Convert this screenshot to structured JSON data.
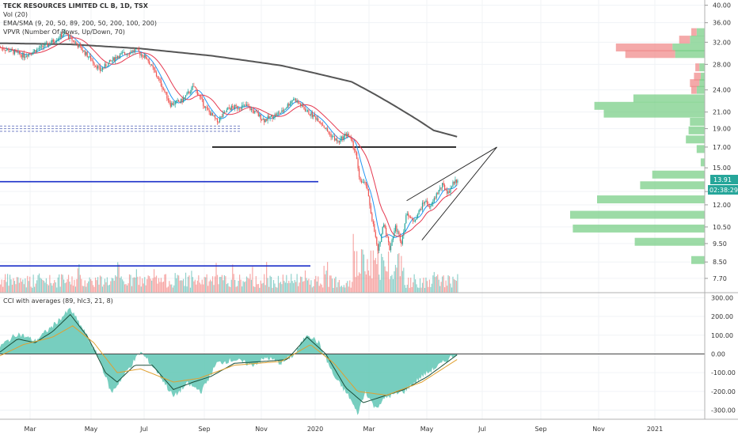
{
  "legend": {
    "title": "TECK RESOURCES LIMITED CL B, 1D, TSX",
    "vol": "Vol (20)",
    "ema": "EMA/SMA (9, 20, 50, 89, 200, 50, 200, 100, 200)",
    "vpvr": "VPVR (Number Of Rows, Up/Down, 70)",
    "cci": "CCI with averages (89, hlc3, 21, 8)"
  },
  "price_badges": {
    "last": "13.91",
    "countdown": "02:38:29"
  },
  "colors": {
    "up": "#26a69a",
    "down": "#ef5350",
    "ema_short": "#2196f3",
    "ema_mid": "#e53950",
    "ma_long": "#555555",
    "level": "#1a2fc9",
    "vpvr_up": "#7bcf88",
    "vpvr_down": "#f08c8c",
    "cci_fill": "#5fc6b4"
  },
  "chart_data": [
    {
      "type": "candlestick",
      "title": "TECK RESOURCES LIMITED CL B, 1D, TSX",
      "x_ticks": [
        "Mar",
        "May",
        "Jul",
        "Sep",
        "Nov",
        "2020",
        "Mar",
        "May",
        "Jul",
        "Sep",
        "Nov",
        "2021"
      ],
      "y_ticks": [
        "7.70",
        "8.50",
        "9.50",
        "10.50",
        "12.00",
        "13.00",
        "15.00",
        "17.00",
        "19.00",
        "21.00",
        "24.00",
        "28.00",
        "32.00",
        "36.00",
        "40.00"
      ],
      "y_scale": "log",
      "ylim": [
        7.2,
        40.5
      ],
      "last_price": 13.91,
      "anchors": [
        {
          "d": 0,
          "p": 31.0
        },
        {
          "d": 20,
          "p": 29.5
        },
        {
          "d": 40,
          "p": 31.5
        },
        {
          "d": 55,
          "p": 33.8
        },
        {
          "d": 70,
          "p": 30.5
        },
        {
          "d": 85,
          "p": 27.0
        },
        {
          "d": 100,
          "p": 29.5
        },
        {
          "d": 115,
          "p": 30.5
        },
        {
          "d": 125,
          "p": 29.0
        },
        {
          "d": 135,
          "p": 25.5
        },
        {
          "d": 145,
          "p": 22.0
        },
        {
          "d": 155,
          "p": 22.5
        },
        {
          "d": 165,
          "p": 24.5
        },
        {
          "d": 175,
          "p": 21.5
        },
        {
          "d": 185,
          "p": 19.8
        },
        {
          "d": 195,
          "p": 21.5
        },
        {
          "d": 210,
          "p": 21.8
        },
        {
          "d": 225,
          "p": 20.0
        },
        {
          "d": 240,
          "p": 21.0
        },
        {
          "d": 250,
          "p": 22.8
        },
        {
          "d": 262,
          "p": 21.0
        },
        {
          "d": 272,
          "p": 20.0
        },
        {
          "d": 280,
          "p": 18.5
        },
        {
          "d": 288,
          "p": 17.5
        },
        {
          "d": 296,
          "p": 18.5
        },
        {
          "d": 303,
          "p": 16.5
        },
        {
          "d": 306,
          "p": 14.0
        },
        {
          "d": 312,
          "p": 13.5
        },
        {
          "d": 317,
          "p": 11.0
        },
        {
          "d": 322,
          "p": 9.0
        },
        {
          "d": 327,
          "p": 10.8
        },
        {
          "d": 332,
          "p": 9.2
        },
        {
          "d": 337,
          "p": 10.5
        },
        {
          "d": 342,
          "p": 9.6
        },
        {
          "d": 347,
          "p": 11.5
        },
        {
          "d": 352,
          "p": 10.8
        },
        {
          "d": 357,
          "p": 11.5
        },
        {
          "d": 362,
          "p": 12.3
        },
        {
          "d": 367,
          "p": 11.8
        },
        {
          "d": 372,
          "p": 12.8
        },
        {
          "d": 377,
          "p": 13.5
        },
        {
          "d": 382,
          "p": 12.9
        },
        {
          "d": 387,
          "p": 13.8
        },
        {
          "d": 390,
          "p": 13.91
        }
      ],
      "moving_average_200": [
        {
          "d": 0,
          "p": 31.8
        },
        {
          "d": 60,
          "p": 31.6
        },
        {
          "d": 120,
          "p": 30.8
        },
        {
          "d": 180,
          "p": 29.5
        },
        {
          "d": 240,
          "p": 27.8
        },
        {
          "d": 300,
          "p": 25.2
        },
        {
          "d": 340,
          "p": 21.5
        },
        {
          "d": 370,
          "p": 18.8
        },
        {
          "d": 390,
          "p": 18.1
        }
      ],
      "horizontal_levels": [
        {
          "price": 13.8,
          "color": "#1a2fc9",
          "x0": 0,
          "x1": 402
        },
        {
          "price": 8.3,
          "color": "#1a2fc9",
          "x0": 0,
          "x1": 392
        },
        {
          "price": 17.0,
          "color": "#000000",
          "x0": 268,
          "x1": 576
        },
        {
          "price": 19.3,
          "color": "#7a86c8",
          "x0": 0,
          "x1": 305
        },
        {
          "price": 19.0,
          "color": "#7a86c8",
          "x0": 0,
          "x1": 305
        },
        {
          "price": 18.7,
          "color": "#7a86c8",
          "x0": 0,
          "x1": 305
        }
      ],
      "wedge": {
        "apex": {
          "d": 424,
          "p": 17.0
        },
        "upper_start": {
          "d": 347,
          "p": 12.3
        },
        "lower_start": {
          "d": 360,
          "p": 9.7
        }
      },
      "volume_profile": [
        {
          "price": 34.0,
          "up": 0.06,
          "down": 0.04
        },
        {
          "price": 32.5,
          "up": 0.11,
          "down": 0.08
        },
        {
          "price": 31.0,
          "up": 0.24,
          "down": 0.42
        },
        {
          "price": 29.8,
          "up": 0.22,
          "down": 0.37
        },
        {
          "price": 27.5,
          "up": 0.04,
          "down": 0.03
        },
        {
          "price": 26.0,
          "up": 0.03,
          "down": 0.05
        },
        {
          "price": 25.0,
          "up": 0.04,
          "down": 0.07
        },
        {
          "price": 24.0,
          "up": 0.06,
          "down": 0.04
        },
        {
          "price": 22.8,
          "up": 0.53,
          "down": 0.0
        },
        {
          "price": 21.8,
          "up": 0.82,
          "down": 0.0
        },
        {
          "price": 20.8,
          "up": 0.75,
          "down": 0.0
        },
        {
          "price": 19.8,
          "up": 0.11,
          "down": 0.0
        },
        {
          "price": 18.8,
          "up": 0.12,
          "down": 0.0
        },
        {
          "price": 17.8,
          "up": 0.14,
          "down": 0.0
        },
        {
          "price": 16.8,
          "up": 0.06,
          "down": 0.0
        },
        {
          "price": 15.5,
          "up": 0.03,
          "down": 0.0
        },
        {
          "price": 14.4,
          "up": 0.39,
          "down": 0.0
        },
        {
          "price": 13.5,
          "up": 0.48,
          "down": 0.0
        },
        {
          "price": 12.4,
          "up": 0.8,
          "down": 0.0
        },
        {
          "price": 11.3,
          "up": 1.0,
          "down": 0.0
        },
        {
          "price": 10.4,
          "up": 0.98,
          "down": 0.0
        },
        {
          "price": 9.6,
          "up": 0.52,
          "down": 0.0
        },
        {
          "price": 8.6,
          "up": 0.1,
          "down": 0.0
        }
      ]
    },
    {
      "type": "area",
      "title": "CCI with averages (89, hlc3, 21, 8)",
      "y_ticks": [
        "300.00",
        "200.00",
        "100.00",
        "0.00",
        "-100.00",
        "-200.00",
        "-300.00"
      ],
      "ylim": [
        -340,
        310
      ],
      "cci": [
        {
          "d": 0,
          "v": 40
        },
        {
          "d": 15,
          "v": 110
        },
        {
          "d": 30,
          "v": 70
        },
        {
          "d": 45,
          "v": 150
        },
        {
          "d": 60,
          "v": 240
        },
        {
          "d": 72,
          "v": 120
        },
        {
          "d": 85,
          "v": -30
        },
        {
          "d": 95,
          "v": -210
        },
        {
          "d": 105,
          "v": -120
        },
        {
          "d": 120,
          "v": 10
        },
        {
          "d": 135,
          "v": -100
        },
        {
          "d": 148,
          "v": -230
        },
        {
          "d": 160,
          "v": -160
        },
        {
          "d": 172,
          "v": -200
        },
        {
          "d": 185,
          "v": -50
        },
        {
          "d": 200,
          "v": -30
        },
        {
          "d": 215,
          "v": -60
        },
        {
          "d": 228,
          "v": -20
        },
        {
          "d": 240,
          "v": -50
        },
        {
          "d": 252,
          "v": 0
        },
        {
          "d": 262,
          "v": 110
        },
        {
          "d": 272,
          "v": 60
        },
        {
          "d": 285,
          "v": -120
        },
        {
          "d": 298,
          "v": -230
        },
        {
          "d": 305,
          "v": -320
        },
        {
          "d": 312,
          "v": -200
        },
        {
          "d": 320,
          "v": -290
        },
        {
          "d": 330,
          "v": -230
        },
        {
          "d": 345,
          "v": -200
        },
        {
          "d": 360,
          "v": -120
        },
        {
          "d": 375,
          "v": -60
        },
        {
          "d": 390,
          "v": 5
        }
      ],
      "avg_fast": [
        {
          "d": 0,
          "v": 10
        },
        {
          "d": 15,
          "v": 80
        },
        {
          "d": 30,
          "v": 60
        },
        {
          "d": 45,
          "v": 120
        },
        {
          "d": 60,
          "v": 210
        },
        {
          "d": 75,
          "v": 90
        },
        {
          "d": 90,
          "v": -100
        },
        {
          "d": 100,
          "v": -150
        },
        {
          "d": 115,
          "v": -60
        },
        {
          "d": 130,
          "v": -60
        },
        {
          "d": 148,
          "v": -190
        },
        {
          "d": 165,
          "v": -150
        },
        {
          "d": 180,
          "v": -120
        },
        {
          "d": 200,
          "v": -50
        },
        {
          "d": 225,
          "v": -40
        },
        {
          "d": 245,
          "v": -30
        },
        {
          "d": 262,
          "v": 90
        },
        {
          "d": 278,
          "v": 0
        },
        {
          "d": 295,
          "v": -180
        },
        {
          "d": 310,
          "v": -260
        },
        {
          "d": 325,
          "v": -230
        },
        {
          "d": 345,
          "v": -190
        },
        {
          "d": 365,
          "v": -120
        },
        {
          "d": 390,
          "v": -5
        }
      ],
      "avg_slow": [
        {
          "d": 0,
          "v": -10
        },
        {
          "d": 20,
          "v": 50
        },
        {
          "d": 45,
          "v": 90
        },
        {
          "d": 62,
          "v": 150
        },
        {
          "d": 80,
          "v": 60
        },
        {
          "d": 100,
          "v": -100
        },
        {
          "d": 120,
          "v": -80
        },
        {
          "d": 148,
          "v": -150
        },
        {
          "d": 170,
          "v": -130
        },
        {
          "d": 200,
          "v": -60
        },
        {
          "d": 240,
          "v": -40
        },
        {
          "d": 265,
          "v": 50
        },
        {
          "d": 285,
          "v": -50
        },
        {
          "d": 305,
          "v": -200
        },
        {
          "d": 330,
          "v": -220
        },
        {
          "d": 360,
          "v": -150
        },
        {
          "d": 390,
          "v": -30
        }
      ]
    }
  ]
}
